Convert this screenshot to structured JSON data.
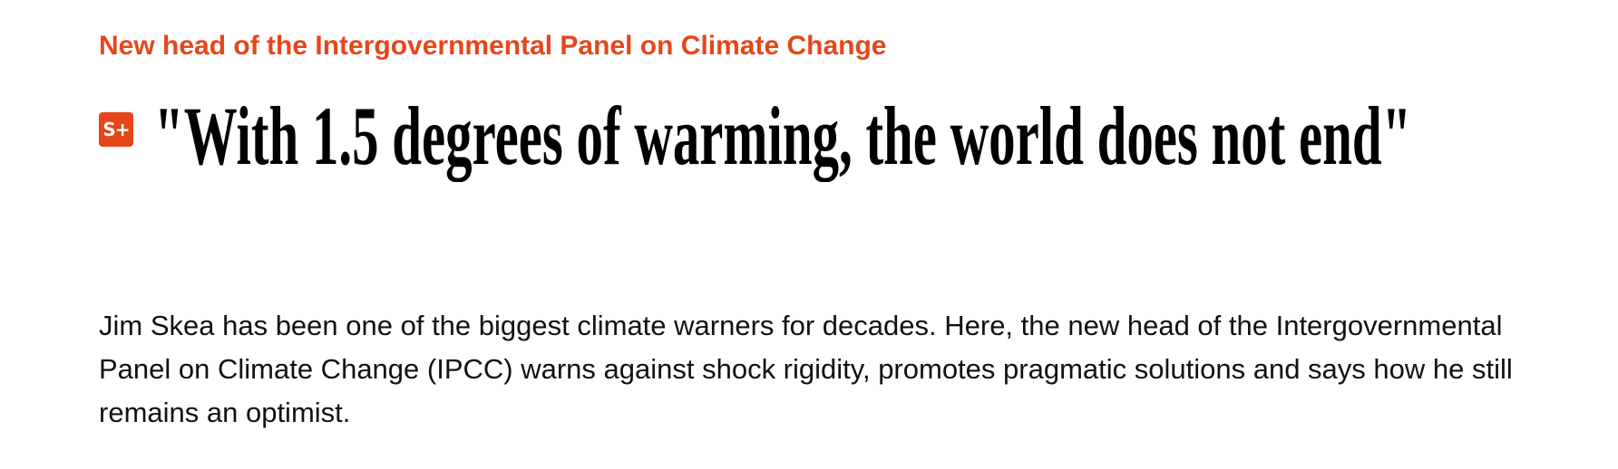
{
  "article": {
    "kicker": "New head of the Intergovernmental Panel on Climate Change",
    "badge": "S+",
    "badge_icon": "s-plus-icon",
    "title": "\"With 1.5 degrees of warming, the world does not end\"",
    "lead": "Jim Skea has been one of the biggest climate warners for decades. Here, the new head of the Intergovernmental Panel on Climate Change (IPCC) warns against shock rigidity, promotes pragmatic solutions and says how he still remains an optimist.",
    "colors": {
      "accent": "#e5461a",
      "text": "#000000"
    }
  }
}
